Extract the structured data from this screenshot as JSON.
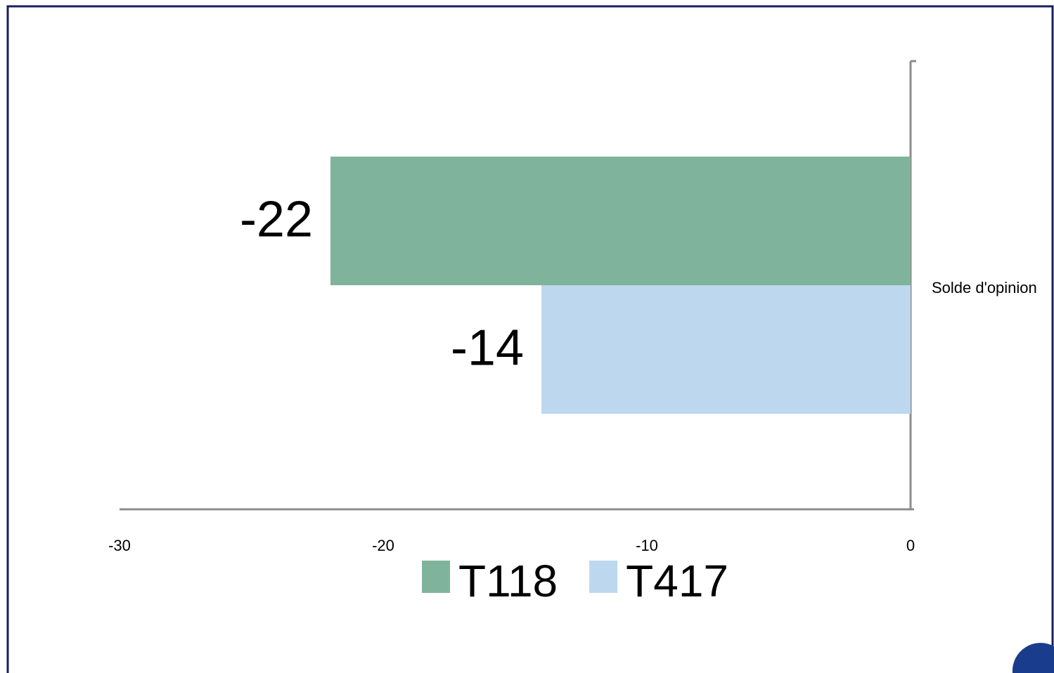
{
  "chart_data": {
    "type": "bar",
    "orientation": "horizontal",
    "categories": [
      "Solde d'opinion"
    ],
    "series": [
      {
        "name": "T118",
        "color": "#80b39b",
        "values": [
          -22
        ]
      },
      {
        "name": "T417",
        "color": "#bdd7ee",
        "values": [
          -14
        ]
      }
    ],
    "xlim": [
      -30,
      0
    ],
    "xticks": [
      -30,
      -20,
      -10,
      0
    ],
    "legend": "bottom",
    "data_labels": true
  }
}
